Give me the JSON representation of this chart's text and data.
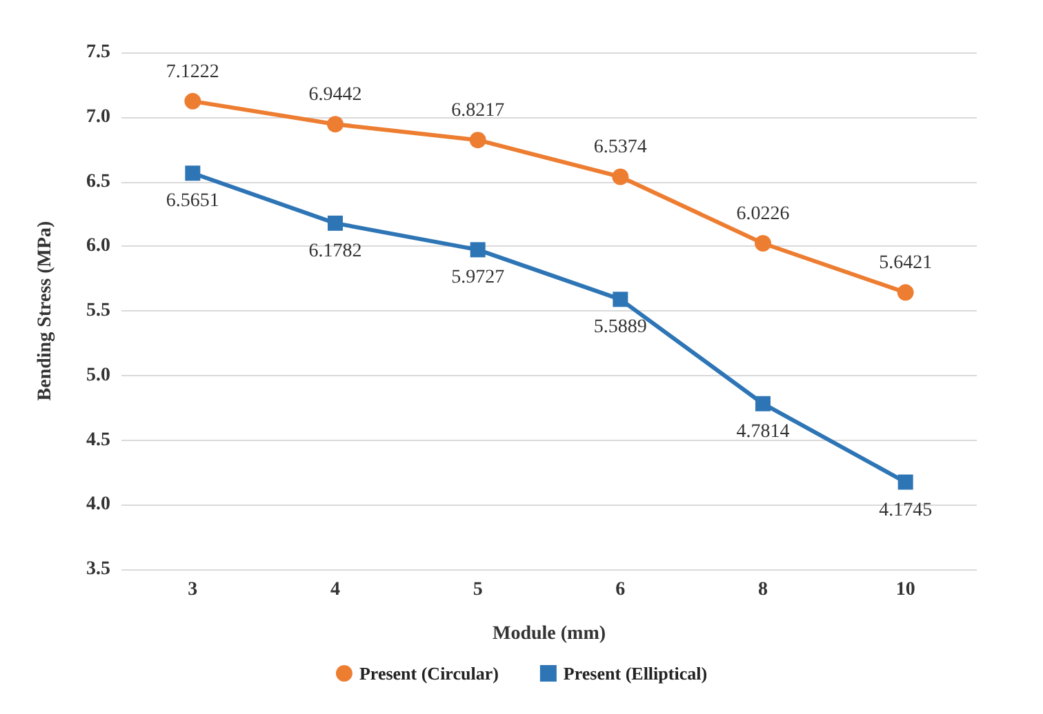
{
  "chart_data": {
    "type": "line",
    "xlabel": "Module (mm)",
    "ylabel": "Bending Stress (MPa)",
    "categories": [
      "3",
      "4",
      "5",
      "6",
      "8",
      "10"
    ],
    "series": [
      {
        "name": "Present (Circular)",
        "color": "#ed7d31",
        "marker": "circle",
        "values": [
          7.1222,
          6.9442,
          6.8217,
          6.5374,
          6.0226,
          5.6421
        ]
      },
      {
        "name": "Present (Elliptical)",
        "color": "#2e75b6",
        "marker": "square",
        "values": [
          6.5651,
          6.1782,
          5.9727,
          5.5889,
          4.7814,
          4.1745
        ]
      }
    ],
    "ylim": [
      3.5,
      7.5
    ],
    "yticks": [
      3.5,
      {
        "value": 4,
        "label": "4.0"
      },
      4.5,
      {
        "value": 5,
        "label": "5.0"
      },
      5.5,
      {
        "value": 6,
        "label": "6.0"
      },
      6.5,
      {
        "value": 7,
        "label": "7.0"
      },
      7.5
    ],
    "grid": "y",
    "legend": "bottom",
    "data_labels": true,
    "line_style": "solid"
  }
}
